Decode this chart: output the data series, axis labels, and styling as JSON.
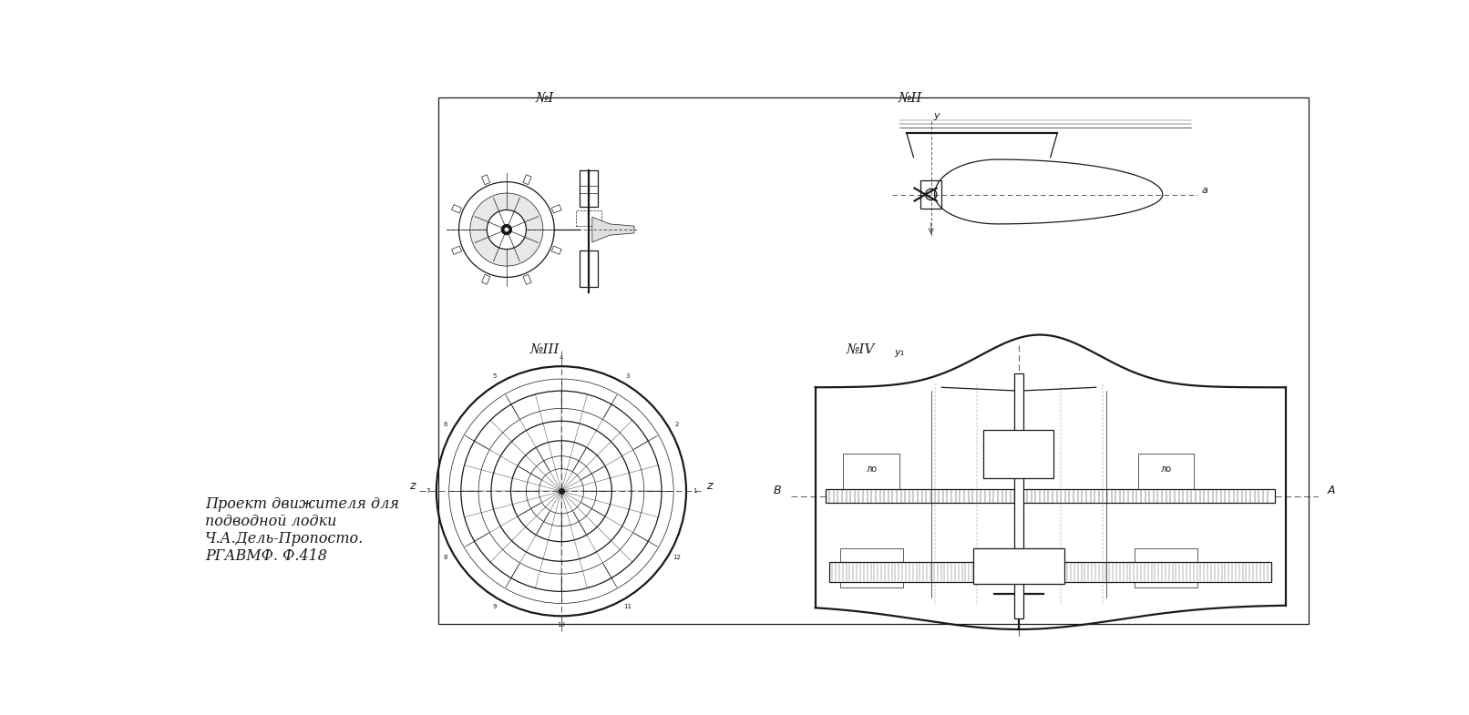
{
  "bg_color": "#ffffff",
  "drawing_color": "#1a1a1a",
  "caption_lines": [
    "Проект движителя для",
    "подводной лодки",
    "Ч.А.Дель-Пропосто.",
    "РГАВМФ. Ф.418"
  ],
  "label_NI": "№I",
  "label_NII": "№II",
  "label_NIII": "№III",
  "label_NIV": "№IV"
}
